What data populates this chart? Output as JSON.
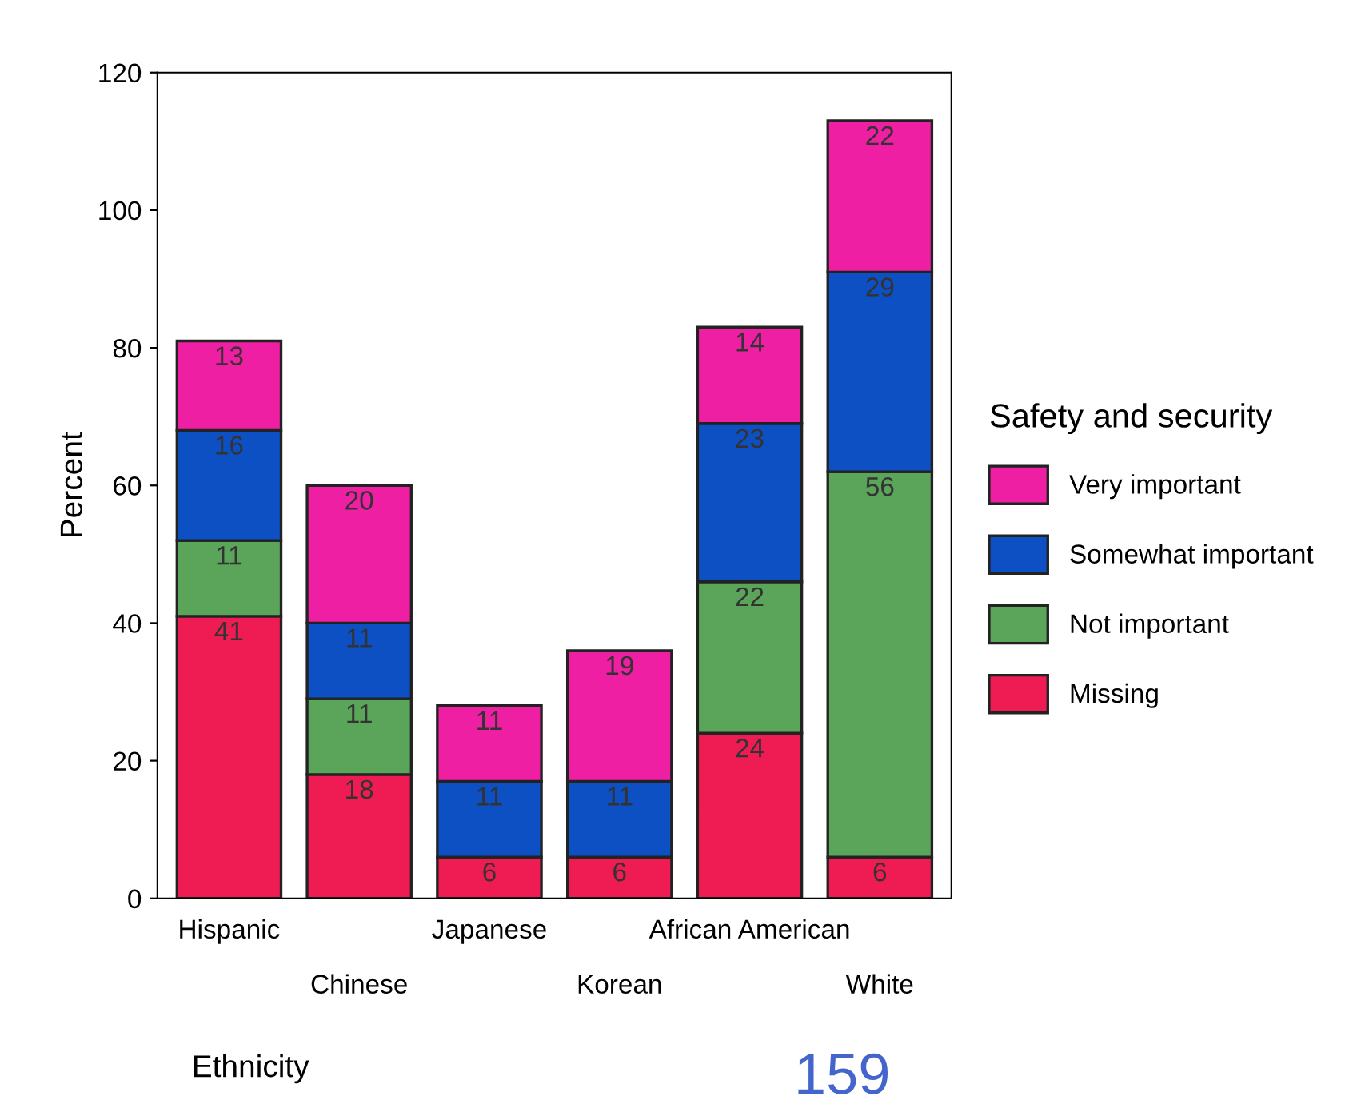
{
  "chart_data": {
    "type": "bar",
    "stacked": true,
    "xlabel": "Ethnicity",
    "ylabel": "Percent",
    "legend_title": "Safety and security",
    "legend": "right",
    "categories": [
      "Hispanic",
      "Chinese",
      "Japanese",
      "Korean",
      "African American",
      "White"
    ],
    "series": [
      {
        "name": "Missing",
        "color": "#ee1c52",
        "values": [
          41,
          18,
          6,
          6,
          24,
          6
        ]
      },
      {
        "name": "Not important",
        "color": "#5ba55b",
        "values": [
          11,
          11,
          null,
          null,
          22,
          56
        ]
      },
      {
        "name": "Somewhat important",
        "color": "#0c50c4",
        "values": [
          16,
          11,
          11,
          11,
          23,
          29
        ]
      },
      {
        "name": "Very important",
        "color": "#ee1fa2",
        "values": [
          13,
          20,
          11,
          19,
          14,
          22
        ]
      }
    ],
    "ylim": [
      0,
      120
    ],
    "yticks": [
      0,
      20,
      40,
      60,
      80,
      100,
      120
    ],
    "data_labels": true,
    "grid": false,
    "annotations": [
      "159"
    ]
  }
}
